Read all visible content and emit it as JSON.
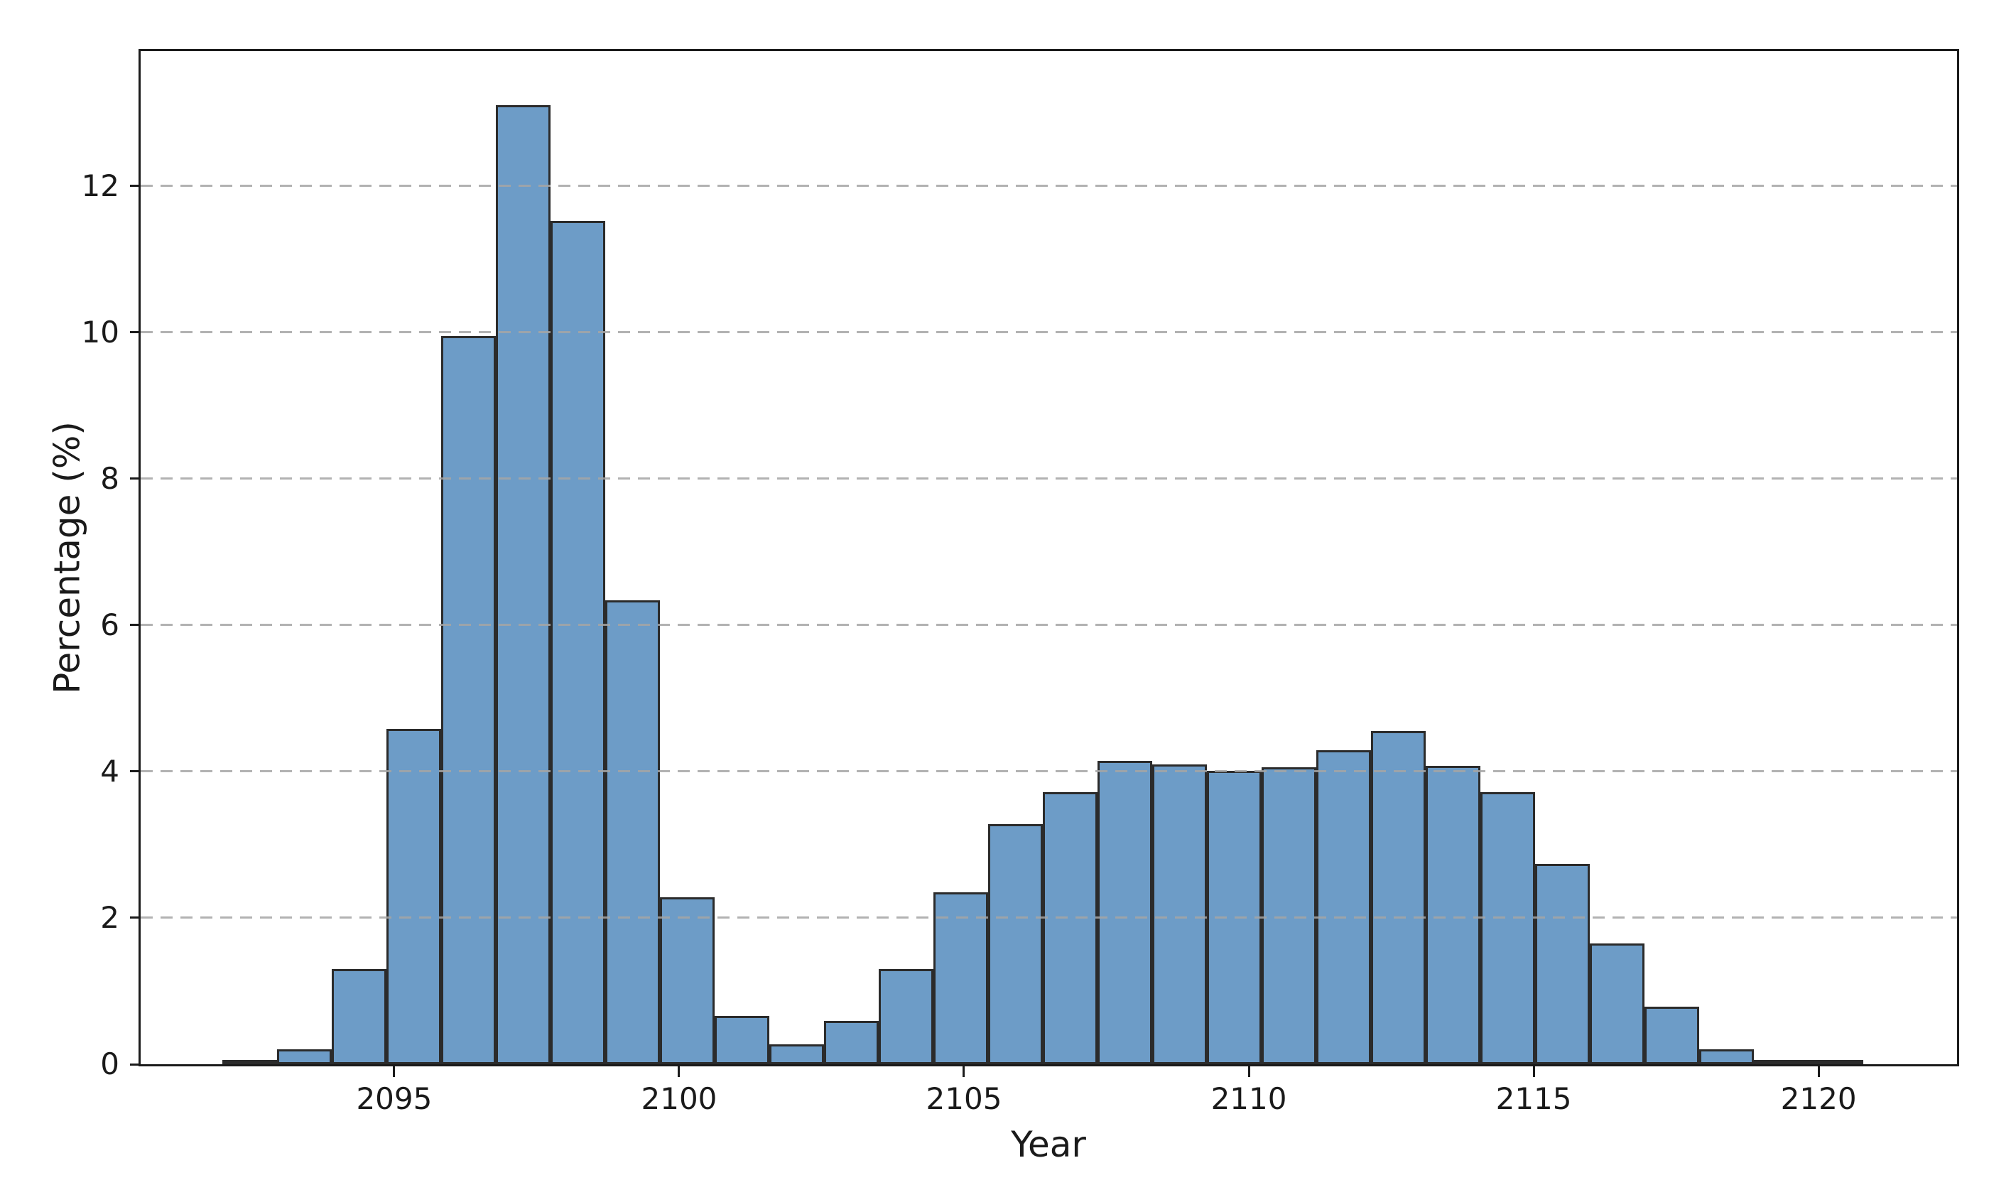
{
  "chart_data": {
    "type": "bar",
    "subtype": "histogram",
    "title": "",
    "xlabel": "Year",
    "ylabel": "Percentage (%)",
    "xlim": [
      2090.55,
      2122.43
    ],
    "ylim": [
      0,
      13.84
    ],
    "xticks": [
      2095,
      2100,
      2105,
      2110,
      2115,
      2120
    ],
    "yticks": [
      0,
      2,
      4,
      6,
      8,
      10,
      12
    ],
    "grid": {
      "axis": "y",
      "style": "dashed",
      "position": "above-bars"
    },
    "legend": "none",
    "bin_width_years": 0.96,
    "bins_start": [
      2092.0,
      2092.96,
      2093.92,
      2094.88,
      2095.84,
      2096.8,
      2097.76,
      2098.72,
      2099.68,
      2100.64,
      2101.6,
      2102.56,
      2103.52,
      2104.48,
      2105.44,
      2106.4,
      2107.36,
      2108.32,
      2109.28,
      2110.24,
      2111.2,
      2112.16,
      2113.12,
      2114.08,
      2115.04,
      2116.0,
      2116.96,
      2117.92,
      2118.88,
      2119.84
    ],
    "values": [
      0.05,
      0.2,
      1.3,
      4.58,
      9.95,
      13.1,
      11.52,
      6.34,
      2.28,
      0.66,
      0.27,
      0.59,
      1.3,
      2.35,
      3.28,
      3.72,
      4.14,
      4.1,
      4.01,
      4.06,
      4.29,
      4.55,
      4.08,
      3.72,
      2.74,
      1.65,
      0.79,
      0.2,
      0.06,
      0.03
    ],
    "colors": {
      "bar_fill": "#6d9cc7",
      "bar_edge": "#2b2b2b",
      "background": "#ffffff",
      "axis": "#1b1b1b",
      "grid": "#a5a5a5",
      "text": "#1a1a1a"
    }
  }
}
